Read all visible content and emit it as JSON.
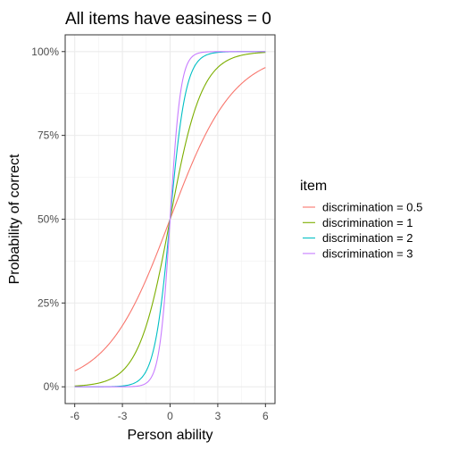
{
  "chart_data": {
    "type": "line",
    "title": "All items have easiness = 0",
    "xlabel": "Person ability",
    "ylabel": "Probability of correct",
    "xlim": [
      -6.6,
      6.6
    ],
    "ylim": [
      -0.05,
      1.05
    ],
    "x_ticks": [
      -6,
      -3,
      0,
      3,
      6
    ],
    "x_tick_labels": [
      "-6",
      "-3",
      "0",
      "3",
      "6"
    ],
    "y_ticks": [
      0,
      0.25,
      0.5,
      0.75,
      1
    ],
    "y_tick_labels": [
      "0%",
      "25%",
      "50%",
      "75%",
      "100%"
    ],
    "grid": true,
    "legend_title": "item",
    "legend_position": "right",
    "model": "logistic: p = 1 / (1 + exp(-discrimination * ability))",
    "x": [
      -6,
      -5,
      -4,
      -3,
      -2,
      -1,
      0,
      1,
      2,
      3,
      4,
      5,
      6
    ],
    "series": [
      {
        "name": "discrimination = 0.5",
        "discrimination": 0.5,
        "color": "#F8766D",
        "values": [
          0.047,
          0.076,
          0.119,
          0.182,
          0.269,
          0.378,
          0.5,
          0.622,
          0.731,
          0.818,
          0.881,
          0.924,
          0.953
        ]
      },
      {
        "name": "discrimination = 1",
        "discrimination": 1,
        "color": "#7CAE00",
        "values": [
          0.002,
          0.007,
          0.018,
          0.047,
          0.119,
          0.269,
          0.5,
          0.731,
          0.881,
          0.953,
          0.982,
          0.993,
          0.998
        ]
      },
      {
        "name": "discrimination = 2",
        "discrimination": 2,
        "color": "#00BFC4",
        "values": [
          0.0,
          0.0,
          0.0,
          0.002,
          0.018,
          0.119,
          0.5,
          0.881,
          0.982,
          0.998,
          1.0,
          1.0,
          1.0
        ]
      },
      {
        "name": "discrimination = 3",
        "discrimination": 3,
        "color": "#C77CFF",
        "values": [
          0.0,
          0.0,
          0.0,
          0.0,
          0.002,
          0.047,
          0.5,
          0.953,
          0.998,
          1.0,
          1.0,
          1.0,
          1.0
        ]
      }
    ]
  }
}
